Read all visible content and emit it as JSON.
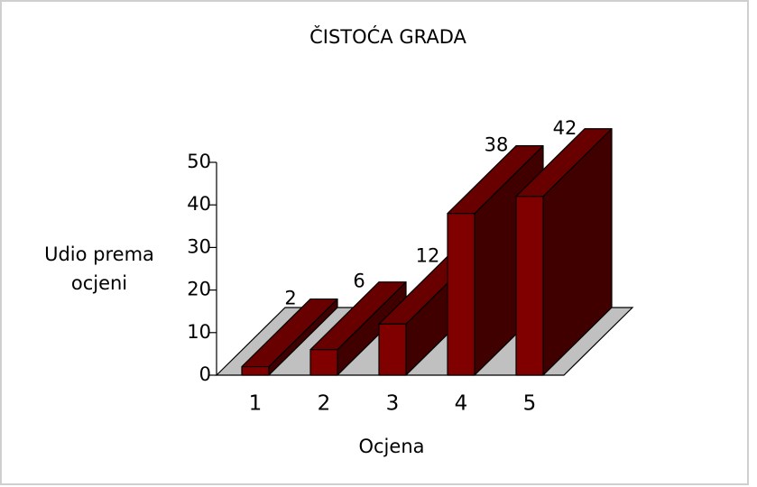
{
  "chart_data": {
    "type": "bar3d",
    "title": "ČISTOĆA GRADA",
    "y_label": "Udio prema ocjeni",
    "x_label": "Ocjena",
    "categories": [
      "1",
      "2",
      "3",
      "4",
      "5"
    ],
    "values": [
      2,
      6,
      12,
      38,
      42
    ],
    "color": "#800000",
    "ylim": [
      0,
      50
    ],
    "yticks": [
      0,
      10,
      20,
      30,
      40,
      50
    ]
  }
}
